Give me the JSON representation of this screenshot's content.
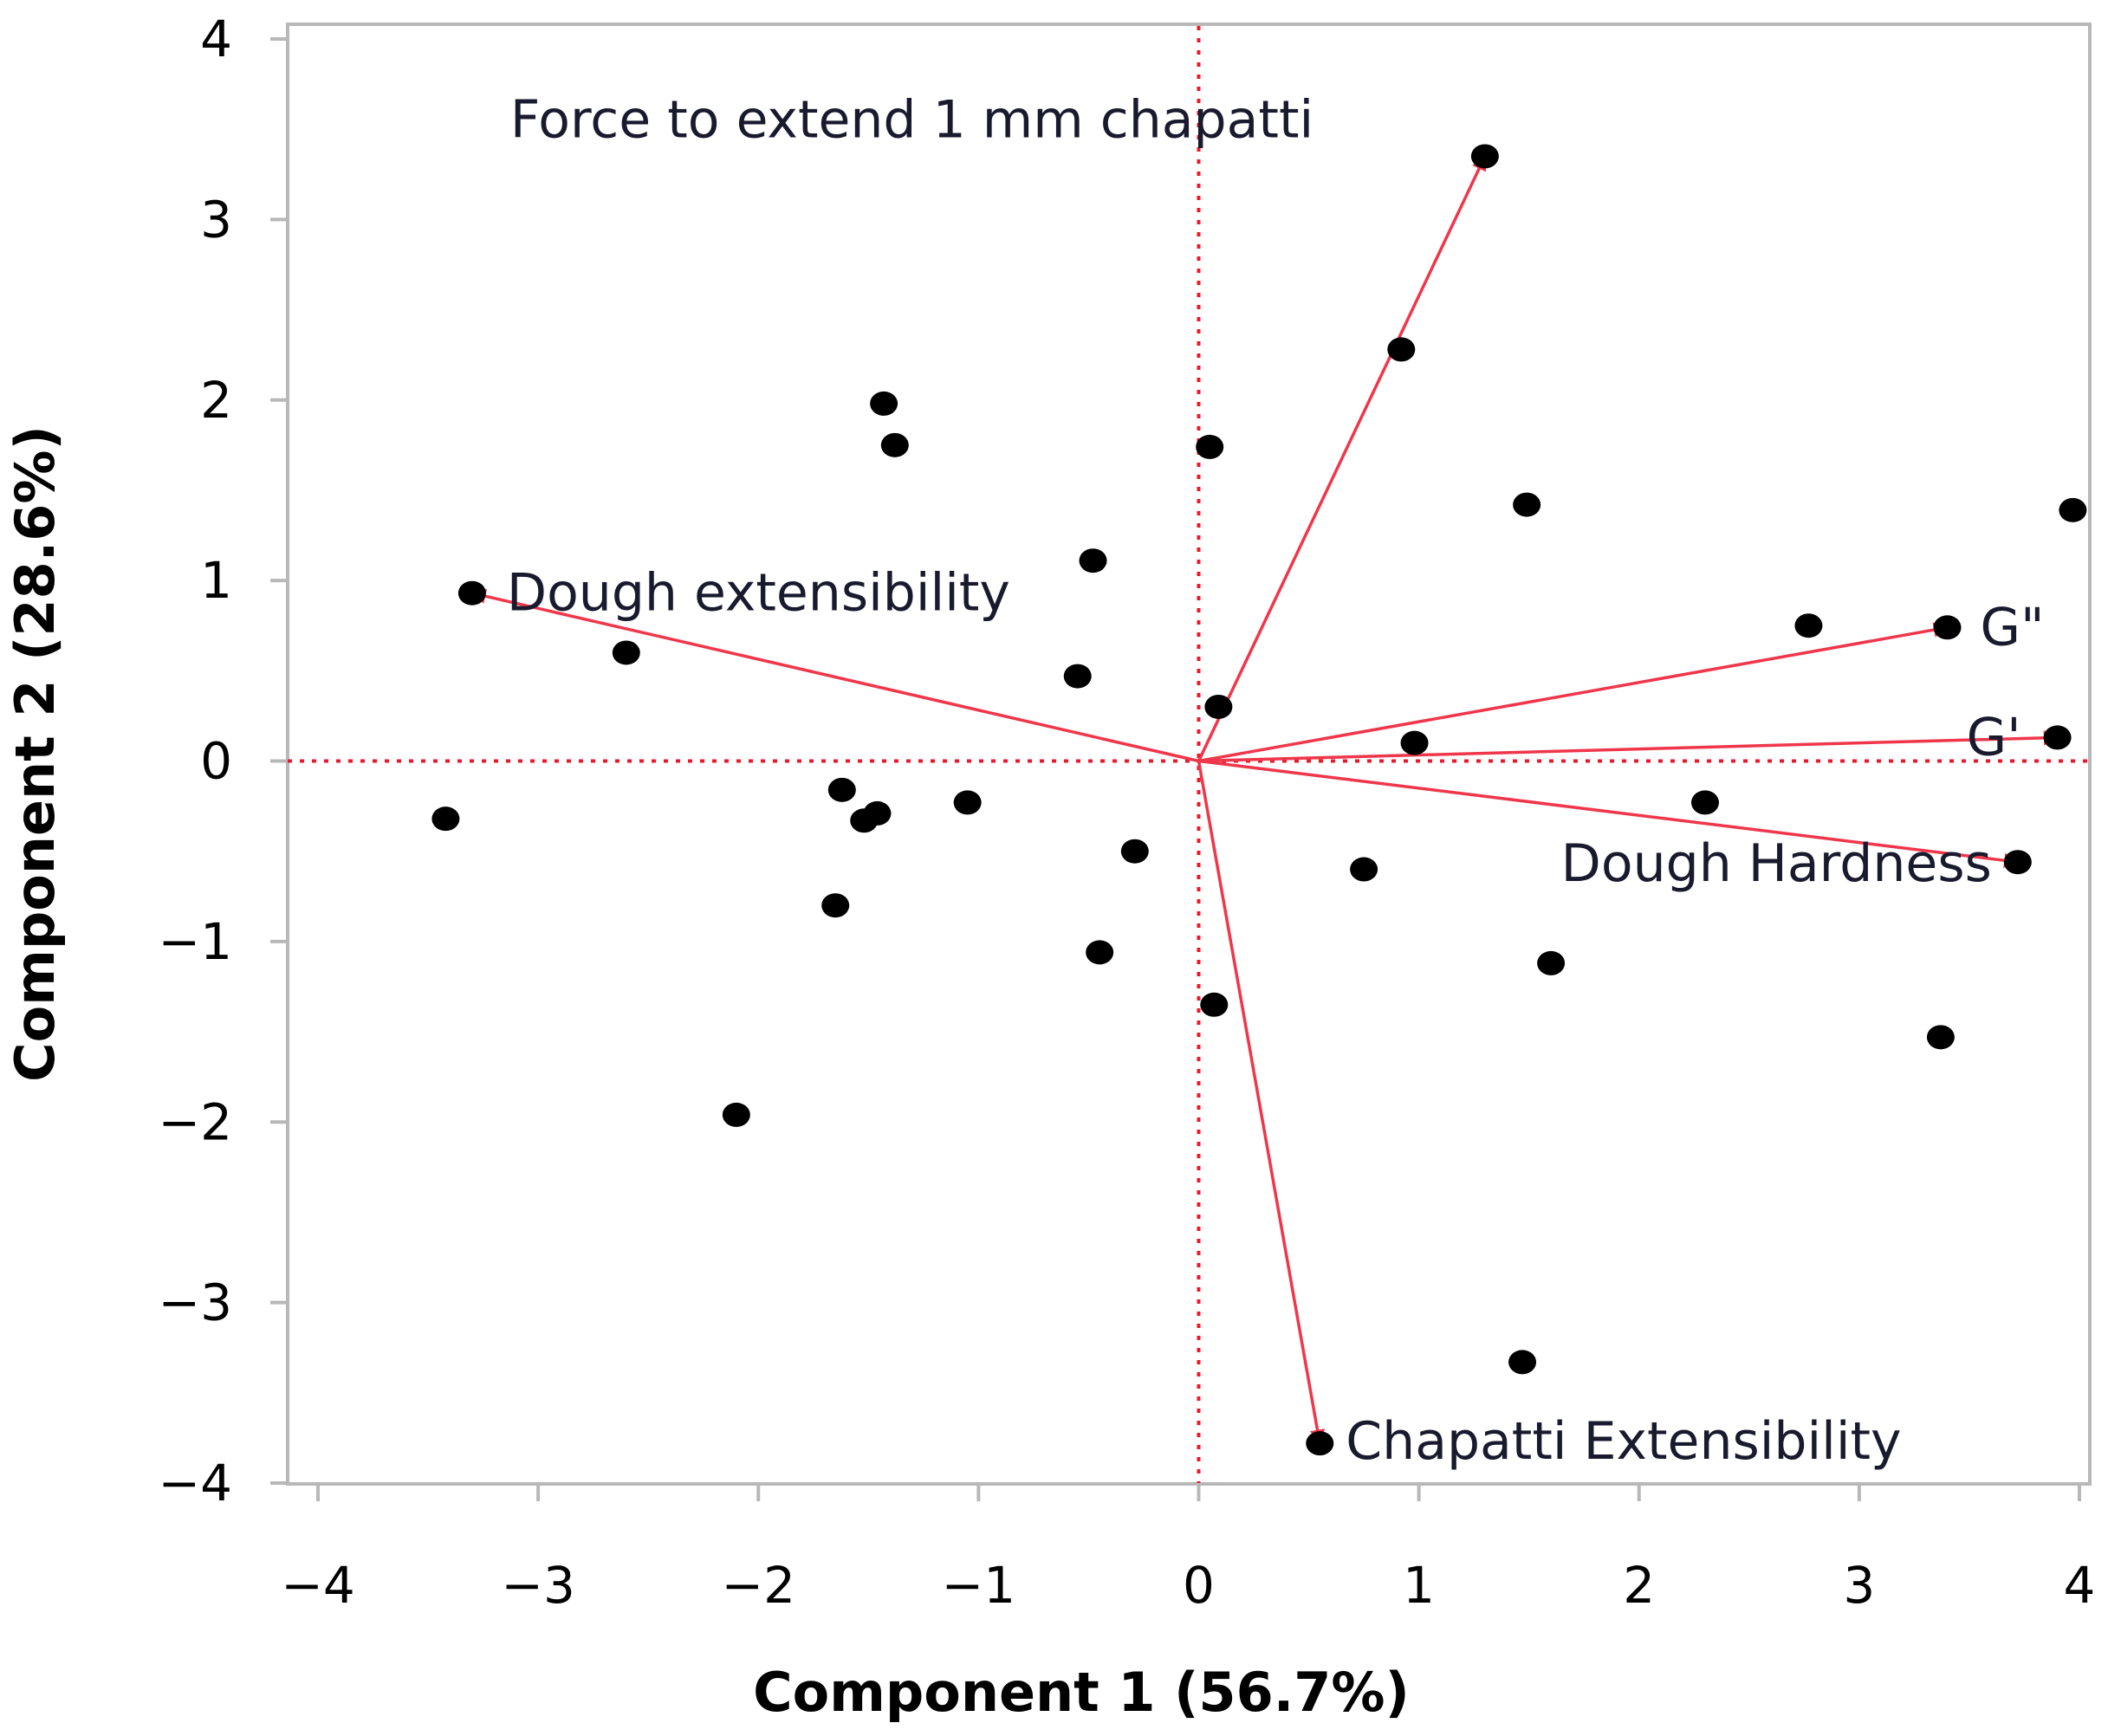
{
  "chart_data": {
    "type": "scatter",
    "subtype": "pca-biplot",
    "xlabel": "Component 1 (56.7%)",
    "ylabel": "Component 2 (28.6%)",
    "xlim": [
      -4,
      4
    ],
    "ylim": [
      -4,
      4
    ],
    "xticks": [
      -4,
      -3,
      -2,
      -1,
      0,
      1,
      2,
      3,
      4
    ],
    "yticks": [
      -4,
      -3,
      -2,
      -1,
      0,
      1,
      2,
      3,
      4
    ],
    "xtick_labels": [
      "−4",
      "−3",
      "−2",
      "−1",
      "0",
      "1",
      "2",
      "3",
      "4"
    ],
    "ytick_labels": [
      "−4",
      "−3",
      "−2",
      "−1",
      "0",
      "1",
      "2",
      "3",
      "4"
    ],
    "reference_lines": {
      "x": 0,
      "y": 0,
      "style": "dotted",
      "color": "#e8192c"
    },
    "points": [
      {
        "x": -3.42,
        "y": -0.32
      },
      {
        "x": -2.6,
        "y": 0.6
      },
      {
        "x": -2.1,
        "y": -1.96
      },
      {
        "x": -1.65,
        "y": -0.8
      },
      {
        "x": -1.62,
        "y": -0.16
      },
      {
        "x": -1.52,
        "y": -0.33
      },
      {
        "x": -1.46,
        "y": -0.29
      },
      {
        "x": -1.43,
        "y": 1.98
      },
      {
        "x": -1.38,
        "y": 1.75
      },
      {
        "x": -1.05,
        "y": -0.23
      },
      {
        "x": -0.55,
        "y": 0.47
      },
      {
        "x": -0.48,
        "y": 1.11
      },
      {
        "x": -0.45,
        "y": -1.06
      },
      {
        "x": -0.29,
        "y": -0.5
      },
      {
        "x": 0.05,
        "y": 1.74
      },
      {
        "x": 0.07,
        "y": -1.35
      },
      {
        "x": 0.09,
        "y": 0.3
      },
      {
        "x": 0.75,
        "y": -0.6
      },
      {
        "x": 0.92,
        "y": 2.28
      },
      {
        "x": 0.98,
        "y": 0.1
      },
      {
        "x": 1.47,
        "y": -3.33
      },
      {
        "x": 1.49,
        "y": 1.42
      },
      {
        "x": 1.6,
        "y": -1.12
      },
      {
        "x": 2.3,
        "y": -0.23
      },
      {
        "x": 2.77,
        "y": 0.75
      },
      {
        "x": 3.37,
        "y": -1.53
      },
      {
        "x": 3.97,
        "y": 1.39
      },
      {
        "x": 1.3,
        "y": 3.35
      },
      {
        "x": -3.3,
        "y": 0.93
      },
      {
        "x": 3.4,
        "y": 0.74
      },
      {
        "x": 3.9,
        "y": 0.13
      },
      {
        "x": 3.72,
        "y": -0.56
      },
      {
        "x": 0.55,
        "y": -3.78
      }
    ],
    "vectors": [
      {
        "name": "Force to extend 1 mm chapatti",
        "x": 1.3,
        "y": 3.35
      },
      {
        "name": "Dough extensibility",
        "x": -3.3,
        "y": 0.93
      },
      {
        "name": "G\"",
        "x": 3.4,
        "y": 0.74
      },
      {
        "name": "G'",
        "x": 3.9,
        "y": 0.13
      },
      {
        "name": "Dough Hardness",
        "x": 3.72,
        "y": -0.56
      },
      {
        "name": "Chapatti Extensibility",
        "x": 0.55,
        "y": -3.78
      }
    ],
    "colors": {
      "points": "#000000",
      "vectors": "#f0364a",
      "reference_lines": "#e8192c",
      "frame": "#b8b8b8",
      "label_text": "#1a1a2e"
    }
  }
}
